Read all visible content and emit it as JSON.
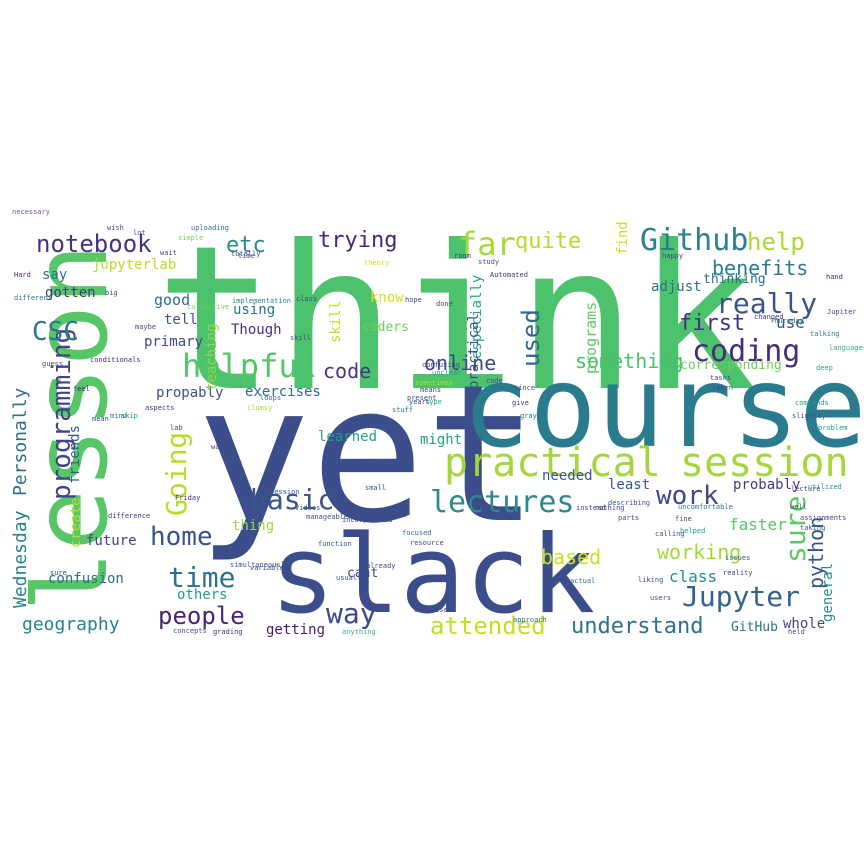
{
  "words": [
    {
      "text": "think",
      "color": "#4cc26c"
    },
    {
      "text": "yet",
      "color": "#3b4d8a"
    },
    {
      "text": "course",
      "color": "#2a7b8e"
    },
    {
      "text": "slack",
      "color": "#3b4d8a"
    },
    {
      "text": "lesson",
      "color": "#56c667"
    },
    {
      "text": "practical",
      "color": "#a5d63d"
    },
    {
      "text": "session",
      "color": "#a5d63d"
    },
    {
      "text": "Github",
      "color": "#2d7f8e"
    },
    {
      "text": "lectures",
      "color": "#2c8a8d"
    },
    {
      "text": "notebook",
      "color": "#46327e"
    },
    {
      "text": "really",
      "color": "#3b528b"
    },
    {
      "text": "coding",
      "color": "#472d7b"
    },
    {
      "text": "helpful",
      "color": "#52c569"
    },
    {
      "text": "programming",
      "color": "#404387"
    },
    {
      "text": "Going",
      "color": "#b5de2b"
    },
    {
      "text": "basic",
      "color": "#39558c"
    },
    {
      "text": "home",
      "color": "#3b528b"
    },
    {
      "text": "time",
      "color": "#2c728e"
    },
    {
      "text": "people",
      "color": "#482475"
    },
    {
      "text": "Jupyter",
      "color": "#33638d"
    },
    {
      "text": "attended",
      "color": "#c2df23"
    },
    {
      "text": "understand",
      "color": "#2c728e"
    },
    {
      "text": "work",
      "color": "#3e4989"
    },
    {
      "text": "sure",
      "color": "#5ec962"
    },
    {
      "text": "way",
      "color": "#3e4989"
    },
    {
      "text": "far",
      "color": "#a2da37"
    },
    {
      "text": "quite",
      "color": "#b5de2b"
    },
    {
      "text": "help",
      "color": "#a8db34"
    },
    {
      "text": "CSC",
      "color": "#2a788e"
    },
    {
      "text": "etc",
      "color": "#2c8a8d"
    },
    {
      "text": "trying",
      "color": "#482878"
    },
    {
      "text": "used",
      "color": "#31688e"
    },
    {
      "text": "benefits",
      "color": "#2a7b8e"
    },
    {
      "text": "first",
      "color": "#46327e"
    },
    {
      "text": "python",
      "color": "#3b528b"
    },
    {
      "text": "working",
      "color": "#a0da39"
    },
    {
      "text": "code",
      "color": "#453781"
    },
    {
      "text": "online",
      "color": "#3e4989"
    },
    {
      "text": "something",
      "color": "#48c16e"
    },
    {
      "text": "based",
      "color": "#cae11f"
    },
    {
      "text": "class",
      "color": "#21918c"
    },
    {
      "text": "Personally",
      "color": "#2e6f8e"
    },
    {
      "text": "Wednesday",
      "color": "#26828e"
    },
    {
      "text": "geography",
      "color": "#26828e"
    },
    {
      "text": "exercises",
      "color": "#31688e"
    },
    {
      "text": "probably",
      "color": "#453882"
    },
    {
      "text": "least",
      "color": "#38588c"
    },
    {
      "text": "needed",
      "color": "#3a548c"
    },
    {
      "text": "faster",
      "color": "#56c667"
    },
    {
      "text": "learned",
      "color": "#1fa187"
    },
    {
      "text": "future",
      "color": "#404387"
    },
    {
      "text": "confusion",
      "color": "#2e6e8e"
    },
    {
      "text": "using",
      "color": "#2c728e"
    },
    {
      "text": "good",
      "color": "#31688e"
    },
    {
      "text": "primary",
      "color": "#3e4989"
    },
    {
      "text": "Though",
      "color": "#472f7d"
    },
    {
      "text": "propably",
      "color": "#3b528b"
    },
    {
      "text": "teaching",
      "color": "#93d741"
    },
    {
      "text": "gotten",
      "color": "#453781"
    },
    {
      "text": "say",
      "color": "#2d708e"
    },
    {
      "text": "jupyterlab",
      "color": "#b8de29"
    },
    {
      "text": "especially",
      "color": "#22a884"
    },
    {
      "text": "know",
      "color": "#d2e21b"
    },
    {
      "text": "cant",
      "color": "#3e4a89"
    },
    {
      "text": "might",
      "color": "#20a386"
    },
    {
      "text": "whole",
      "color": "#414487"
    },
    {
      "text": "thing",
      "color": "#a0da39"
    },
    {
      "text": "others",
      "color": "#1fa187"
    },
    {
      "text": "getting",
      "color": "#481a6c"
    },
    {
      "text": "adjust",
      "color": "#2c728e"
    },
    {
      "text": "general",
      "color": "#21918c"
    },
    {
      "text": "use",
      "color": "#3b528b"
    },
    {
      "text": "tell",
      "color": "#3b528b"
    },
    {
      "text": "coders",
      "color": "#6ece58"
    },
    {
      "text": "skill",
      "color": "#c5e021"
    },
    {
      "text": "create",
      "color": "#b5de2b"
    },
    {
      "text": "programs",
      "color": "#5ec962"
    },
    {
      "text": "friends",
      "color": "#38598c"
    },
    {
      "text": "corresponding",
      "color": "#6ece58"
    },
    {
      "text": "thinking",
      "color": "#2d708e"
    },
    {
      "text": "GitHub",
      "color": "#2d708e"
    },
    {
      "text": "find",
      "color": "#c8e020"
    },
    {
      "text": "practical",
      "color": "#3b528b"
    },
    {
      "text": "necessary",
      "color": "#7e4f9a"
    },
    {
      "text": "uploading",
      "color": "#2e6e8e"
    },
    {
      "text": "simple",
      "color": "#7ad151"
    },
    {
      "text": "collective",
      "color": "#6ece58"
    },
    {
      "text": "implementation",
      "color": "#25848e"
    },
    {
      "text": "totally",
      "color": "#3e4989"
    },
    {
      "text": "theory",
      "color": "#d2e21b"
    },
    {
      "text": "room",
      "color": "#46327e"
    },
    {
      "text": "study",
      "color": "#3b528b"
    },
    {
      "text": "Automated",
      "color": "#46327e"
    },
    {
      "text": "hand",
      "color": "#472d7b"
    },
    {
      "text": "talking",
      "color": "#2a788e"
    },
    {
      "text": "languages",
      "color": "#31b57b"
    },
    {
      "text": "Thursday",
      "color": "#2c728e"
    },
    {
      "text": "changed",
      "color": "#453781"
    },
    {
      "text": "deep",
      "color": "#22a884"
    },
    {
      "text": "learn",
      "color": "#3e4989"
    },
    {
      "text": "commands",
      "color": "#1f9e89"
    },
    {
      "text": "slightly",
      "color": "#3b528b"
    },
    {
      "text": "problem",
      "color": "#1fa187"
    },
    {
      "text": "Hard",
      "color": "#472d7b"
    },
    {
      "text": "different",
      "color": "#2c728e"
    },
    {
      "text": "conditionals",
      "color": "#472d7b"
    },
    {
      "text": "mind",
      "color": "#2a788e"
    },
    {
      "text": "skip",
      "color": "#1f9e89"
    },
    {
      "text": "feel",
      "color": "#482475"
    },
    {
      "text": "aspects",
      "color": "#46327e"
    },
    {
      "text": "loops",
      "color": "#2d708e"
    },
    {
      "text": "clumsy",
      "color": "#a5db36"
    },
    {
      "text": "means",
      "color": "#414487"
    },
    {
      "text": "present",
      "color": "#3b528b"
    },
    {
      "text": "give",
      "color": "#46327e"
    },
    {
      "text": "gray",
      "color": "#2c728e"
    },
    {
      "text": "stuff",
      "color": "#2c728e"
    },
    {
      "text": "type",
      "color": "#1fa187"
    },
    {
      "text": "confusing",
      "color": "#3e4989"
    },
    {
      "text": "sometimes",
      "color": "#b5de2b"
    },
    {
      "text": "unclear",
      "color": "#1fa187"
    },
    {
      "text": "uncomfortable",
      "color": "#2c728e"
    },
    {
      "text": "fine",
      "color": "#3e4989"
    },
    {
      "text": "helped",
      "color": "#1fa187"
    },
    {
      "text": "utilized",
      "color": "#1fa187"
    },
    {
      "text": "taking",
      "color": "#3b528b"
    },
    {
      "text": "issues",
      "color": "#3b528b"
    },
    {
      "text": "reality",
      "color": "#3e4989"
    },
    {
      "text": "liking",
      "color": "#3e4989"
    },
    {
      "text": "held",
      "color": "#3e4989"
    },
    {
      "text": "actual",
      "color": "#2c728e"
    },
    {
      "text": "describing",
      "color": "#3b528b"
    },
    {
      "text": "parts",
      "color": "#3b528b"
    },
    {
      "text": "nothing",
      "color": "#3e4989"
    },
    {
      "text": "instead",
      "color": "#3e4989"
    },
    {
      "text": "bored",
      "color": "#3e4989"
    },
    {
      "text": "focused",
      "color": "#2c728e"
    },
    {
      "text": "resource",
      "color": "#3e4989"
    },
    {
      "text": "concepts",
      "color": "#3b528b"
    },
    {
      "text": "grading",
      "color": "#46327e"
    },
    {
      "text": "anything",
      "color": "#35b779"
    },
    {
      "text": "simultaneously",
      "color": "#3b528b"
    },
    {
      "text": "variables",
      "color": "#3e4989"
    },
    {
      "text": "manageable",
      "color": "#3b528b"
    },
    {
      "text": "incorporated",
      "color": "#3e4989"
    },
    {
      "text": "function",
      "color": "#3b528b"
    },
    {
      "text": "already",
      "color": "#3e4989"
    },
    {
      "text": "usually",
      "color": "#3e4989"
    },
    {
      "text": "small",
      "color": "#3e4989"
    },
    {
      "text": "session",
      "color": "#3b528b"
    },
    {
      "text": "difference",
      "color": "#46327e"
    },
    {
      "text": "Friday",
      "color": "#46327e"
    },
    {
      "text": "videos",
      "color": "#3b528b"
    },
    {
      "text": "approach",
      "color": "#2c728e"
    },
    {
      "text": "exercises",
      "color": "#3e4989"
    },
    {
      "text": "wish",
      "color": "#3e4989"
    },
    {
      "text": "wait",
      "color": "#3e4989"
    },
    {
      "text": "lot",
      "color": "#3e4989"
    },
    {
      "text": "big",
      "color": "#3e4989"
    },
    {
      "text": "maybe",
      "color": "#3e4989"
    },
    {
      "text": "mean",
      "color": "#3e4989"
    },
    {
      "text": "guess",
      "color": "#3e4989"
    },
    {
      "text": "lab",
      "color": "#3e4989"
    },
    {
      "text": "way",
      "color": "#3e4989"
    },
    {
      "text": "class",
      "color": "#3e4989"
    },
    {
      "text": "time",
      "color": "#3e4989"
    },
    {
      "text": "skill",
      "color": "#3e4989"
    },
    {
      "text": "hope",
      "color": "#3e4989"
    },
    {
      "text": "code",
      "color": "#3e4989"
    },
    {
      "text": "years",
      "color": "#3e4989"
    },
    {
      "text": "since",
      "color": "#3e4989"
    },
    {
      "text": "done",
      "color": "#3e4989"
    },
    {
      "text": "happy",
      "color": "#3e4989"
    },
    {
      "text": "Jupiter",
      "color": "#3e4989"
    },
    {
      "text": "tasks",
      "color": "#3e4989"
    },
    {
      "text": "calling",
      "color": "#3e4989"
    },
    {
      "text": "lecture",
      "color": "#3e4989"
    },
    {
      "text": "sure",
      "color": "#3e4989"
    },
    {
      "text": "well",
      "color": "#3e4989"
    },
    {
      "text": "assignments",
      "color": "#3e4989"
    },
    {
      "text": "users",
      "color": "#3e4989"
    },
    {
      "text": "nice",
      "color": "#3e4989"
    },
    {
      "text": "tool",
      "color": "#3e4989"
    }
  ]
}
